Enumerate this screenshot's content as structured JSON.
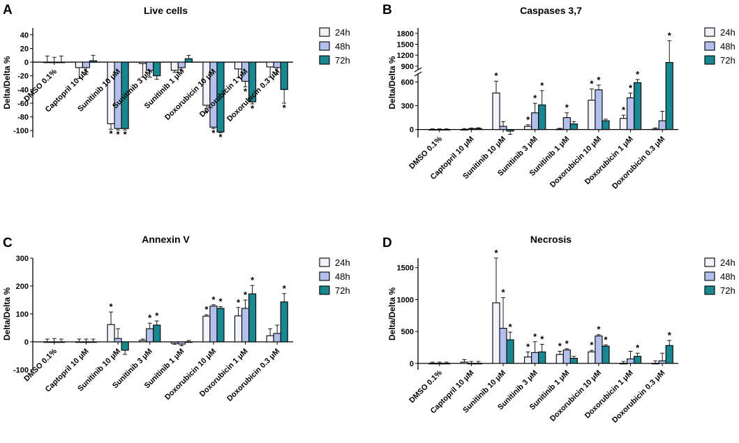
{
  "colors": {
    "24h": "#f1f2fa",
    "48h": "#b3c0ec",
    "72h": "#18878f",
    "stroke": "#000000"
  },
  "chart_data": [
    {
      "panel": "A",
      "type": "bar",
      "title": "Live cells",
      "ylabel": "Delta/Delta %",
      "ylim": [
        -110,
        50
      ],
      "yticks": [
        40,
        20,
        0,
        -20,
        -40,
        -60,
        -80,
        -100
      ],
      "legend": "top-right",
      "categories": [
        "DMSO 0.1%",
        "Captopril 10 μM",
        "Sunitinib 10 μM",
        "Sunitinib 3 μM",
        "Sunitinib 1 μM",
        "Doxorubicin 10 μM",
        "Doxorubicin 1 μM",
        "Doxorubicin 0.3 μM"
      ],
      "series": [
        {
          "name": "24h",
          "values": [
            0,
            -8,
            -90,
            -2,
            -12,
            -63,
            -10,
            -7
          ],
          "errors": [
            9,
            16,
            8,
            20,
            3,
            5,
            13,
            15
          ],
          "stars": [
            false,
            false,
            true,
            false,
            false,
            true,
            false,
            false
          ]
        },
        {
          "name": "48h",
          "values": [
            0,
            -8,
            -97,
            -12,
            -8,
            -95,
            -28,
            -8
          ],
          "errors": [
            7,
            10,
            2,
            10,
            4,
            2,
            8,
            10
          ],
          "stars": [
            false,
            false,
            true,
            false,
            false,
            true,
            true,
            false
          ]
        },
        {
          "name": "72h",
          "values": [
            0,
            2,
            -97,
            -20,
            5,
            -102,
            -58,
            -40
          ],
          "errors": [
            9,
            8,
            2,
            5,
            5,
            1,
            3,
            20
          ],
          "stars": [
            false,
            false,
            true,
            false,
            false,
            true,
            true,
            true
          ]
        }
      ]
    },
    {
      "panel": "B",
      "type": "bar",
      "title": "Caspases 3,7",
      "ylabel": "Delta/Delta %",
      "ylim": [
        -100,
        1950
      ],
      "yticks": [
        1800,
        1500,
        1200,
        900,
        600,
        300,
        0
      ],
      "axis_break": [
        700,
        800
      ],
      "legend": "top-right",
      "categories": [
        "DMSO 0.1%",
        "Captopril 10 μM",
        "Sunitinib 10 μM",
        "Sunitinib 3 μM",
        "Sunitinib 1 μM",
        "Doxorubicin 10 μM",
        "Doxorubicin 1 μM",
        "Doxorubicin 0.3 μM"
      ],
      "series": [
        {
          "name": "24h",
          "values": [
            0,
            0,
            460,
            40,
            5,
            370,
            140,
            5
          ],
          "errors": [
            8,
            12,
            150,
            20,
            10,
            140,
            40,
            15
          ],
          "stars": [
            false,
            false,
            true,
            true,
            false,
            true,
            true,
            false
          ]
        },
        {
          "name": "48h",
          "values": [
            0,
            8,
            40,
            210,
            150,
            500,
            400,
            110
          ],
          "errors": [
            8,
            10,
            60,
            120,
            60,
            60,
            60,
            120
          ],
          "stars": [
            false,
            false,
            false,
            true,
            true,
            true,
            true,
            false
          ]
        },
        {
          "name": "72h",
          "values": [
            0,
            12,
            -20,
            310,
            70,
            110,
            590,
            1000
          ],
          "errors": [
            8,
            10,
            40,
            180,
            30,
            20,
            40,
            600
          ],
          "stars": [
            false,
            false,
            false,
            true,
            false,
            false,
            true,
            true
          ]
        }
      ]
    },
    {
      "panel": "C",
      "type": "bar",
      "title": "Annexin V",
      "ylabel": "Delta/Delta %",
      "ylim": [
        -100,
        300
      ],
      "yticks": [
        300,
        200,
        100,
        0,
        -100
      ],
      "legend": "top-right",
      "categories": [
        "DMSO 0.1%",
        "Captopril 10 μM",
        "Sunitinib 10 μM",
        "Sunitinib 3 μM",
        "Sunitinib 1 μM",
        "Doxorubicin 10 μM",
        "Doxorubicin 1 μM",
        "Doxorubicin 0.3 μM"
      ],
      "series": [
        {
          "name": "24h",
          "values": [
            0,
            0,
            62,
            5,
            -5,
            92,
            93,
            22
          ],
          "errors": [
            10,
            10,
            45,
            5,
            4,
            5,
            30,
            25
          ],
          "stars": [
            false,
            false,
            true,
            false,
            false,
            true,
            true,
            false
          ]
        },
        {
          "name": "48h",
          "values": [
            0,
            0,
            12,
            47,
            -8,
            128,
            120,
            30
          ],
          "errors": [
            12,
            10,
            35,
            20,
            6,
            5,
            30,
            30
          ],
          "stars": [
            false,
            false,
            false,
            true,
            false,
            true,
            true,
            false
          ]
        },
        {
          "name": "72h",
          "values": [
            0,
            0,
            -30,
            60,
            0,
            120,
            172,
            143
          ],
          "errors": [
            10,
            10,
            15,
            15,
            5,
            6,
            30,
            30
          ],
          "stars": [
            false,
            false,
            false,
            true,
            false,
            true,
            true,
            true
          ]
        }
      ]
    },
    {
      "panel": "D",
      "type": "bar",
      "title": "Necrosis",
      "ylabel": "Delta/Delta %",
      "ylim": [
        -100,
        1650
      ],
      "yticks": [
        1500,
        1000,
        500,
        0
      ],
      "legend": "top-right",
      "categories": [
        "DMSO 0.1%",
        "Captopril 10 μM",
        "Sunitinib 10 μM",
        "Sunitinib 3 μM",
        "Sunitinib 1 μM",
        "Doxorubicin 10 μM",
        "Doxorubicin 1 μM",
        "Doxorubicin 0.3 μM"
      ],
      "series": [
        {
          "name": "24h",
          "values": [
            0,
            20,
            950,
            100,
            140,
            180,
            0,
            0
          ],
          "errors": [
            20,
            40,
            700,
            80,
            50,
            25,
            30,
            40
          ],
          "stars": [
            false,
            false,
            true,
            true,
            true,
            true,
            false,
            false
          ]
        },
        {
          "name": "48h",
          "values": [
            0,
            0,
            550,
            170,
            210,
            430,
            70,
            40
          ],
          "errors": [
            20,
            30,
            480,
            170,
            20,
            20,
            120,
            120
          ],
          "stars": [
            false,
            false,
            true,
            true,
            true,
            true,
            false,
            false
          ]
        },
        {
          "name": "72h",
          "values": [
            0,
            0,
            370,
            180,
            80,
            270,
            110,
            280
          ],
          "errors": [
            20,
            30,
            120,
            120,
            30,
            20,
            50,
            80
          ],
          "stars": [
            false,
            false,
            true,
            true,
            false,
            true,
            true,
            true
          ]
        }
      ]
    }
  ]
}
